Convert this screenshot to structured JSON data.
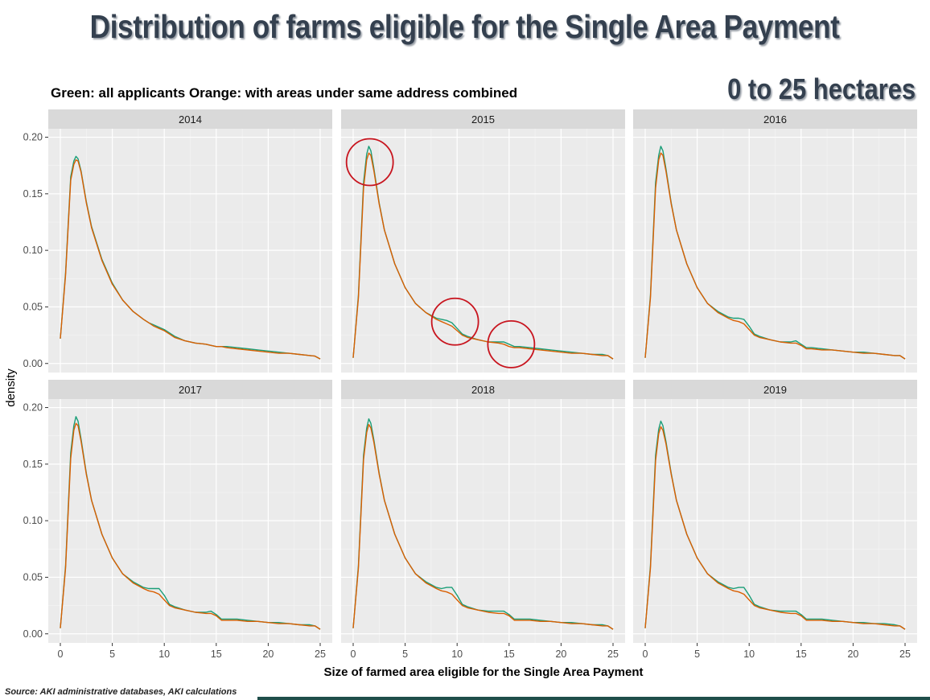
{
  "header": {
    "title": "Distribution of farms eligible for the Single Area Payment",
    "subtitle": "Green: all applicants Orange: with areas under same address combined",
    "range_label": "0 to 25 hectares"
  },
  "footer": {
    "source": "Source: AKI administrative databases, AKI calculations"
  },
  "chart_data": {
    "type": "line",
    "xlabel": "Size of farmed area eligible for the Single Area Payment",
    "ylabel": "density",
    "xlim": [
      0,
      25
    ],
    "ylim": [
      0,
      0.2
    ],
    "x_ticks": [
      "0",
      "5",
      "10",
      "15",
      "20",
      "25"
    ],
    "y_ticks": [
      "0.00",
      "0.05",
      "0.10",
      "0.15",
      "0.20"
    ],
    "grid": true,
    "colors": {
      "green": "#1a9e77",
      "orange": "#d95f02",
      "annotation": "#c8141e",
      "panel_bg": "#ebebeb",
      "strip_bg": "#d9d9d9"
    },
    "x": [
      0,
      0.5,
      1.0,
      1.3,
      1.5,
      1.7,
      2.0,
      2.5,
      3.0,
      4.0,
      5.0,
      6.0,
      7.0,
      8.0,
      8.5,
      9.0,
      9.5,
      10.0,
      10.5,
      11.0,
      12.0,
      13.0,
      14.0,
      14.5,
      15.0,
      15.5,
      16.0,
      17.0,
      18.0,
      19.0,
      20.0,
      21.0,
      22.0,
      23.0,
      24.0,
      24.5,
      25.0
    ],
    "panels": [
      {
        "year": "2014",
        "series": [
          {
            "color": "green",
            "values": [
              0.022,
              0.08,
              0.165,
              0.179,
              0.183,
              0.181,
              0.17,
              0.143,
              0.121,
              0.092,
              0.071,
              0.056,
              0.046,
              0.039,
              0.036,
              0.034,
              0.032,
              0.03,
              0.027,
              0.024,
              0.02,
              0.018,
              0.017,
              0.016,
              0.015,
              0.015,
              0.015,
              0.014,
              0.013,
              0.012,
              0.011,
              0.01,
              0.009,
              0.008,
              0.007,
              0.0065,
              0.004
            ]
          },
          {
            "color": "orange",
            "values": [
              0.022,
              0.078,
              0.162,
              0.176,
              0.18,
              0.179,
              0.169,
              0.142,
              0.12,
              0.091,
              0.07,
              0.056,
              0.046,
              0.039,
              0.036,
              0.033,
              0.031,
              0.029,
              0.026,
              0.023,
              0.02,
              0.018,
              0.017,
              0.016,
              0.015,
              0.015,
              0.014,
              0.013,
              0.012,
              0.011,
              0.01,
              0.009,
              0.009,
              0.008,
              0.007,
              0.0065,
              0.004
            ]
          }
        ]
      },
      {
        "year": "2015",
        "series": [
          {
            "color": "green",
            "values": [
              0.005,
              0.06,
              0.16,
              0.185,
              0.192,
              0.188,
              0.172,
              0.142,
              0.118,
              0.088,
              0.067,
              0.053,
              0.045,
              0.04,
              0.039,
              0.038,
              0.036,
              0.031,
              0.026,
              0.024,
              0.021,
              0.019,
              0.019,
              0.019,
              0.017,
              0.015,
              0.015,
              0.014,
              0.013,
              0.012,
              0.011,
              0.01,
              0.009,
              0.008,
              0.008,
              0.007,
              0.004
            ]
          },
          {
            "color": "orange",
            "values": [
              0.005,
              0.058,
              0.155,
              0.18,
              0.186,
              0.184,
              0.17,
              0.141,
              0.118,
              0.088,
              0.067,
              0.053,
              0.045,
              0.039,
              0.037,
              0.035,
              0.033,
              0.029,
              0.025,
              0.023,
              0.021,
              0.019,
              0.018,
              0.017,
              0.015,
              0.014,
              0.014,
              0.013,
              0.012,
              0.011,
              0.01,
              0.009,
              0.009,
              0.008,
              0.007,
              0.007,
              0.004
            ]
          }
        ]
      },
      {
        "year": "2016",
        "series": [
          {
            "color": "green",
            "values": [
              0.005,
              0.06,
              0.16,
              0.184,
              0.192,
              0.188,
              0.172,
              0.142,
              0.118,
              0.088,
              0.067,
              0.053,
              0.046,
              0.041,
              0.04,
              0.04,
              0.039,
              0.033,
              0.026,
              0.024,
              0.021,
              0.019,
              0.019,
              0.02,
              0.017,
              0.014,
              0.014,
              0.013,
              0.012,
              0.011,
              0.01,
              0.01,
              0.009,
              0.008,
              0.007,
              0.007,
              0.004
            ]
          },
          {
            "color": "orange",
            "values": [
              0.005,
              0.058,
              0.155,
              0.18,
              0.186,
              0.184,
              0.17,
              0.141,
              0.118,
              0.088,
              0.067,
              0.053,
              0.045,
              0.04,
              0.038,
              0.037,
              0.035,
              0.03,
              0.025,
              0.023,
              0.021,
              0.019,
              0.018,
              0.018,
              0.016,
              0.013,
              0.013,
              0.012,
              0.012,
              0.011,
              0.01,
              0.009,
              0.009,
              0.008,
              0.007,
              0.007,
              0.004
            ]
          }
        ]
      },
      {
        "year": "2017",
        "series": [
          {
            "color": "green",
            "values": [
              0.005,
              0.06,
              0.16,
              0.184,
              0.192,
              0.188,
              0.172,
              0.142,
              0.118,
              0.088,
              0.067,
              0.053,
              0.046,
              0.041,
              0.04,
              0.04,
              0.04,
              0.034,
              0.026,
              0.024,
              0.021,
              0.019,
              0.019,
              0.02,
              0.017,
              0.013,
              0.013,
              0.013,
              0.012,
              0.011,
              0.01,
              0.01,
              0.009,
              0.008,
              0.008,
              0.007,
              0.004
            ]
          },
          {
            "color": "orange",
            "values": [
              0.005,
              0.058,
              0.155,
              0.18,
              0.186,
              0.184,
              0.17,
              0.141,
              0.118,
              0.088,
              0.067,
              0.053,
              0.045,
              0.04,
              0.038,
              0.037,
              0.035,
              0.03,
              0.025,
              0.023,
              0.021,
              0.019,
              0.018,
              0.018,
              0.016,
              0.012,
              0.012,
              0.012,
              0.011,
              0.011,
              0.01,
              0.009,
              0.009,
              0.008,
              0.007,
              0.007,
              0.004
            ]
          }
        ]
      },
      {
        "year": "2018",
        "series": [
          {
            "color": "green",
            "values": [
              0.005,
              0.06,
              0.158,
              0.182,
              0.19,
              0.186,
              0.171,
              0.142,
              0.118,
              0.088,
              0.067,
              0.053,
              0.046,
              0.041,
              0.04,
              0.041,
              0.041,
              0.034,
              0.026,
              0.024,
              0.021,
              0.02,
              0.02,
              0.02,
              0.017,
              0.013,
              0.013,
              0.013,
              0.012,
              0.011,
              0.01,
              0.01,
              0.009,
              0.008,
              0.008,
              0.007,
              0.004
            ]
          },
          {
            "color": "orange",
            "values": [
              0.005,
              0.058,
              0.154,
              0.178,
              0.185,
              0.182,
              0.169,
              0.141,
              0.118,
              0.088,
              0.067,
              0.053,
              0.045,
              0.04,
              0.038,
              0.037,
              0.035,
              0.03,
              0.025,
              0.023,
              0.021,
              0.019,
              0.018,
              0.018,
              0.016,
              0.012,
              0.012,
              0.012,
              0.011,
              0.011,
              0.01,
              0.009,
              0.009,
              0.008,
              0.007,
              0.007,
              0.004
            ]
          }
        ]
      },
      {
        "year": "2019",
        "series": [
          {
            "color": "green",
            "values": [
              0.005,
              0.06,
              0.158,
              0.181,
              0.188,
              0.184,
              0.17,
              0.142,
              0.118,
              0.088,
              0.067,
              0.053,
              0.046,
              0.041,
              0.04,
              0.041,
              0.041,
              0.034,
              0.026,
              0.024,
              0.021,
              0.02,
              0.02,
              0.02,
              0.017,
              0.013,
              0.013,
              0.013,
              0.012,
              0.011,
              0.01,
              0.01,
              0.009,
              0.009,
              0.008,
              0.007,
              0.004
            ]
          },
          {
            "color": "orange",
            "values": [
              0.005,
              0.058,
              0.153,
              0.177,
              0.183,
              0.18,
              0.168,
              0.141,
              0.118,
              0.088,
              0.067,
              0.053,
              0.045,
              0.04,
              0.038,
              0.037,
              0.035,
              0.03,
              0.025,
              0.023,
              0.021,
              0.019,
              0.018,
              0.018,
              0.016,
              0.012,
              0.012,
              0.012,
              0.011,
              0.011,
              0.01,
              0.009,
              0.009,
              0.008,
              0.007,
              0.007,
              0.004
            ]
          }
        ]
      }
    ],
    "annotations": [
      {
        "panel": "2015",
        "shape": "circle",
        "x": 1.6,
        "y": 0.178
      },
      {
        "panel": "2015",
        "shape": "circle",
        "x": 9.8,
        "y": 0.037
      },
      {
        "panel": "2015",
        "shape": "circle",
        "x": 15.2,
        "y": 0.017
      }
    ]
  }
}
